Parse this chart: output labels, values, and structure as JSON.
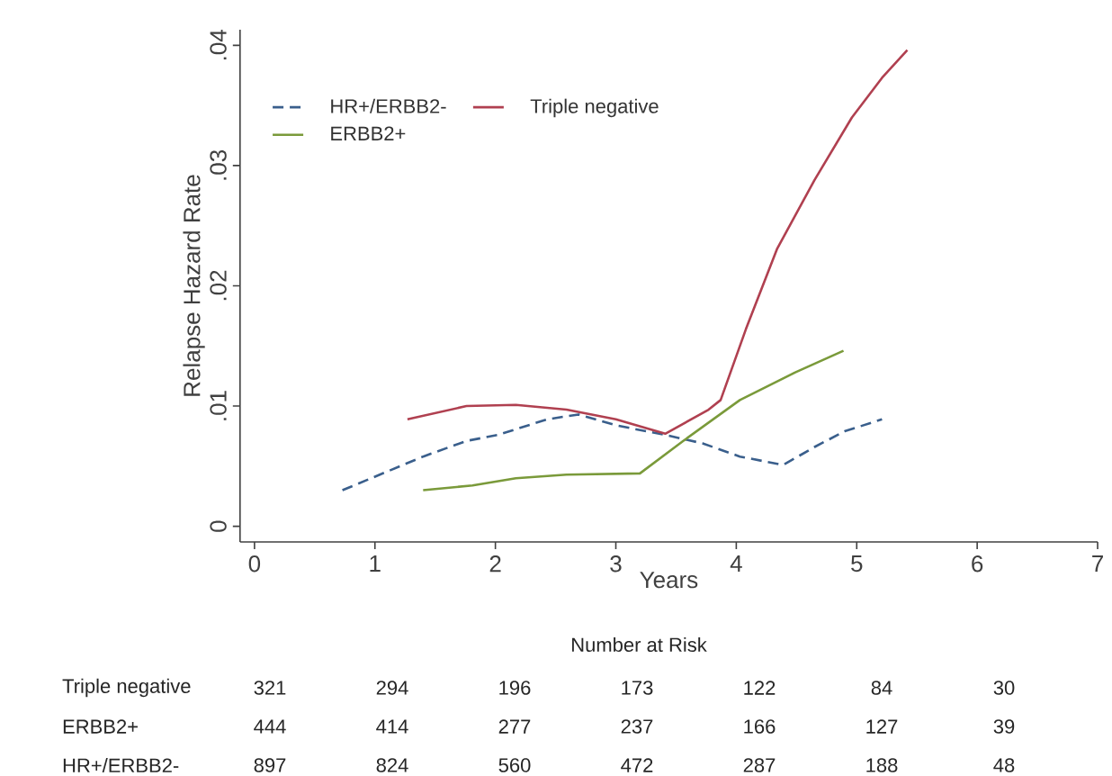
{
  "chart_data": {
    "type": "line",
    "xlabel": "Years",
    "ylabel": "Relapse Hazard Rate",
    "xlim": [
      -0.12,
      7
    ],
    "ylim": [
      -0.0013,
      0.0413
    ],
    "xticks": [
      0,
      1,
      2,
      3,
      4,
      5,
      6,
      7
    ],
    "yticks": [
      {
        "value": 0,
        "label": "0"
      },
      {
        "value": 0.01,
        "label": ".01"
      },
      {
        "value": 0.02,
        "label": ".02"
      },
      {
        "value": 0.03,
        "label": ".03"
      },
      {
        "value": 0.04,
        "label": ".04"
      }
    ],
    "legend": "top left",
    "series": [
      {
        "name": "HR+/ERBB2-",
        "color": "#3a5f8c",
        "line_style": "dashed",
        "x": [
          0.73,
          1.4,
          1.76,
          2.02,
          2.43,
          2.69,
          3.0,
          3.41,
          3.72,
          4.03,
          4.39,
          4.65,
          4.9,
          5.21
        ],
        "values": [
          0.003,
          0.0058,
          0.0071,
          0.0076,
          0.0089,
          0.0093,
          0.0084,
          0.0076,
          0.0069,
          0.0058,
          0.0051,
          0.0066,
          0.0079,
          0.0089
        ]
      },
      {
        "name": "Triple negative",
        "color": "#b04050",
        "line_style": "solid",
        "x": [
          1.27,
          1.76,
          2.17,
          2.59,
          3.0,
          3.41,
          3.77,
          3.87,
          4.08,
          4.34,
          4.65,
          4.96,
          5.21,
          5.42
        ],
        "values": [
          0.0089,
          0.01,
          0.0101,
          0.0097,
          0.0089,
          0.0077,
          0.0097,
          0.0105,
          0.0164,
          0.0231,
          0.0288,
          0.034,
          0.0373,
          0.0396
        ]
      },
      {
        "name": "ERBB2+",
        "color": "#7a9a3a",
        "line_style": "solid",
        "x": [
          1.4,
          1.81,
          2.17,
          2.59,
          3.2,
          3.56,
          4.03,
          4.49,
          4.89
        ],
        "values": [
          0.003,
          0.0034,
          0.004,
          0.0043,
          0.0044,
          0.0071,
          0.0105,
          0.0128,
          0.0146
        ]
      }
    ],
    "annotations": [
      "Number at Risk",
      "Triple negative",
      "321",
      "294",
      "196",
      "173",
      "122",
      "84",
      "30",
      "ERBB2+",
      "444",
      "414",
      "277",
      "237",
      "166",
      "127",
      "39",
      "HR+/ERBB2-",
      "897",
      "824",
      "560",
      "472",
      "287",
      "188",
      "48"
    ]
  }
}
